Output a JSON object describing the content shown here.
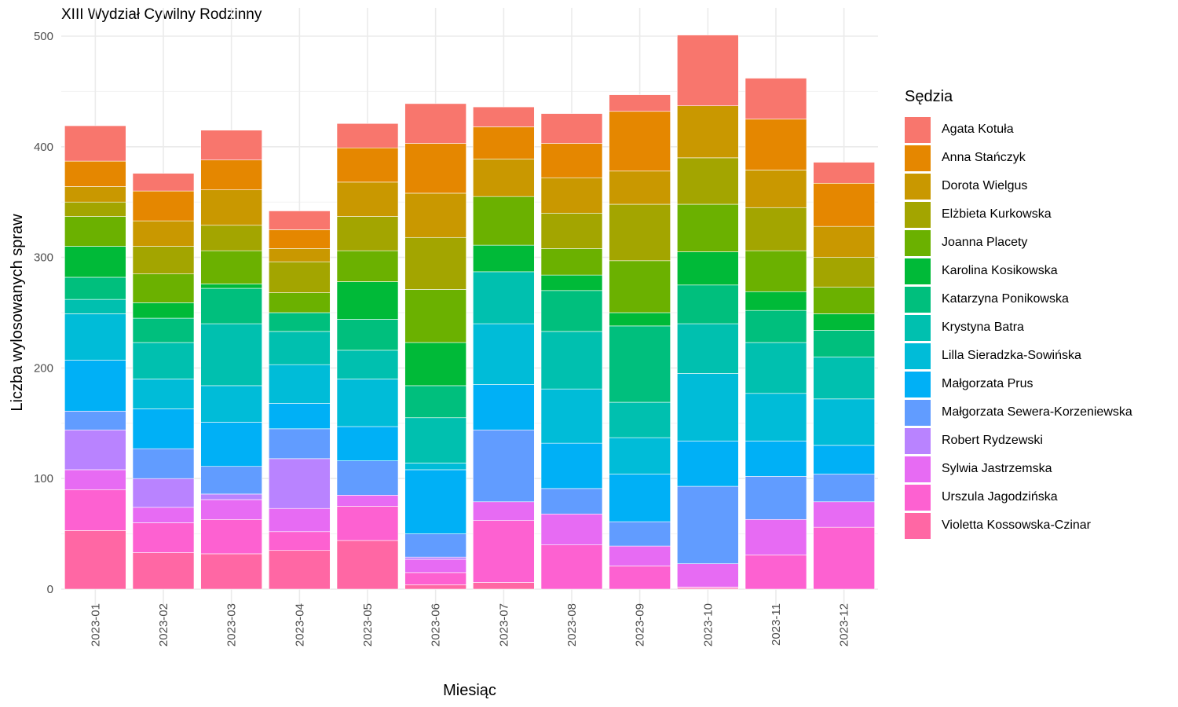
{
  "chart_data": {
    "type": "bar",
    "stacked": true,
    "title": "XIII Wydział Cywilny Rodzinny",
    "xlabel": "Miesiąc",
    "ylabel": "Liczba wylosowanych spraw",
    "ylim": [
      0,
      500
    ],
    "yticks": [
      0,
      100,
      200,
      300,
      400,
      500
    ],
    "grid": true,
    "legend_title": "Sędzia",
    "legend_position": "right",
    "categories": [
      "2023-01",
      "2023-02",
      "2023-03",
      "2023-04",
      "2023-05",
      "2023-06",
      "2023-07",
      "2023-08",
      "2023-09",
      "2023-10",
      "2023-11",
      "2023-12"
    ],
    "series": [
      {
        "name": "Agata Kotuła",
        "color": "#F8766D",
        "values": [
          32,
          16,
          27,
          17,
          22,
          36,
          18,
          27,
          15,
          64,
          37,
          19
        ]
      },
      {
        "name": "Anna Stańczyk",
        "color": "#E58700",
        "values": [
          23,
          27,
          27,
          17,
          31,
          45,
          29,
          31,
          54,
          0,
          46,
          39
        ]
      },
      {
        "name": "Dorota Wielgus",
        "color": "#C99800",
        "values": [
          14,
          23,
          32,
          12,
          31,
          40,
          34,
          32,
          30,
          47,
          34,
          28
        ]
      },
      {
        "name": "Elżbieta Kurkowska",
        "color": "#A3A500",
        "values": [
          13,
          25,
          23,
          28,
          31,
          47,
          0,
          32,
          51,
          42,
          39,
          27
        ]
      },
      {
        "name": "Joanna Placety",
        "color": "#6BB100",
        "values": [
          27,
          26,
          30,
          18,
          28,
          48,
          44,
          24,
          47,
          43,
          37,
          24
        ]
      },
      {
        "name": "Karolina Kosikowska",
        "color": "#00BA38",
        "values": [
          28,
          14,
          4,
          0,
          34,
          39,
          24,
          14,
          12,
          30,
          17,
          15
        ]
      },
      {
        "name": "Katarzyna Ponikowska",
        "color": "#00BF7D",
        "values": [
          20,
          22,
          32,
          17,
          28,
          29,
          0,
          37,
          69,
          35,
          29,
          24
        ]
      },
      {
        "name": "Krystyna Batra",
        "color": "#00C0AF",
        "values": [
          13,
          33,
          56,
          30,
          26,
          41,
          47,
          52,
          32,
          45,
          46,
          38
        ]
      },
      {
        "name": "Lilla Sieradzka-Sowińska",
        "color": "#00BCD8",
        "values": [
          42,
          27,
          33,
          35,
          43,
          6,
          55,
          49,
          33,
          61,
          43,
          42
        ]
      },
      {
        "name": "Małgorzata Prus",
        "color": "#00B0F6",
        "values": [
          46,
          36,
          40,
          23,
          31,
          58,
          41,
          41,
          43,
          41,
          32,
          26
        ]
      },
      {
        "name": "Małgorzata Sewera-Korzeniewska",
        "color": "#619CFF",
        "values": [
          17,
          27,
          25,
          27,
          31,
          21,
          65,
          23,
          22,
          70,
          39,
          25
        ]
      },
      {
        "name": "Robert Rydzewski",
        "color": "#B983FF",
        "values": [
          36,
          26,
          5,
          45,
          0,
          2,
          0,
          0,
          0,
          0,
          0,
          0
        ]
      },
      {
        "name": "Sylwia Jastrzemska",
        "color": "#E76BF3",
        "values": [
          18,
          14,
          18,
          21,
          10,
          12,
          17,
          28,
          18,
          21,
          32,
          23
        ]
      },
      {
        "name": "Urszula Jagodzińska",
        "color": "#FD61D1",
        "values": [
          37,
          27,
          31,
          17,
          31,
          11,
          56,
          40,
          21,
          1,
          31,
          56
        ]
      },
      {
        "name": "Violetta Kossowska-Czinar",
        "color": "#FF67A4",
        "values": [
          53,
          33,
          32,
          35,
          44,
          4,
          6,
          0,
          0,
          1,
          0,
          0
        ]
      }
    ]
  }
}
